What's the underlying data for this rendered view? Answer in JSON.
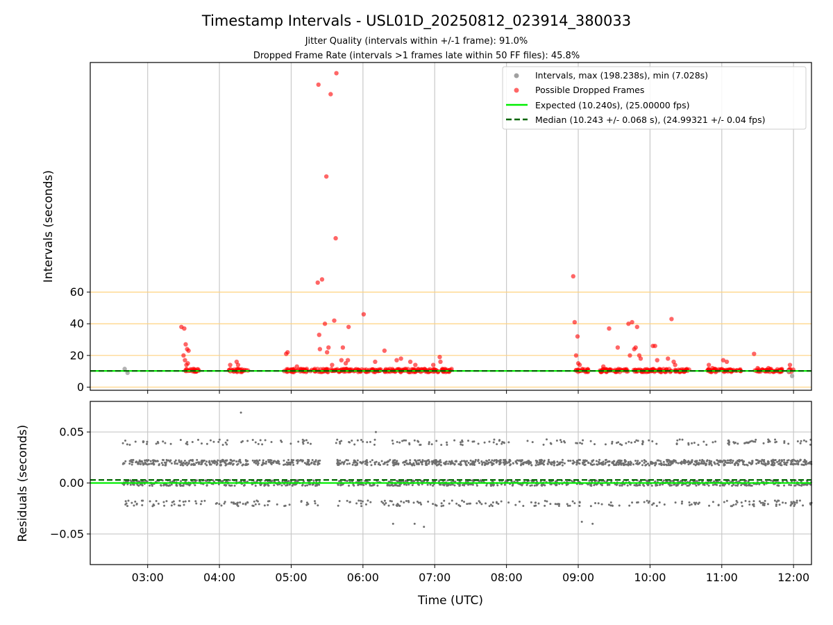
{
  "figure": {
    "title": "Timestamp Intervals - USL01D_20250812_023914_380033",
    "subtitle_1": "Jitter Quality (intervals within +/-1 frame): 91.0%",
    "subtitle_2": "Dropped Frame Rate (intervals >1 frames late within 50 FF files): 45.8%"
  },
  "chart_data": [
    {
      "type": "scatter",
      "panel": "top",
      "ylabel": "Intervals (seconds)",
      "xlabel": "",
      "x_unit": "hours UTC",
      "xlim": [
        2.2,
        12.25
      ],
      "ylim": [
        -2,
        205
      ],
      "y_ticks": [
        0,
        20,
        40,
        60
      ],
      "y_tick_labels": [
        "0",
        "20",
        "40",
        "60"
      ],
      "x_ticks": [
        3,
        4,
        5,
        6,
        7,
        8,
        9,
        10,
        11,
        12
      ],
      "x_tick_labels": [
        "03:00",
        "04:00",
        "05:00",
        "06:00",
        "07:00",
        "08:00",
        "09:00",
        "10:00",
        "11:00",
        "12:00"
      ],
      "grid": "vertical",
      "reference_lines": [
        0,
        20,
        40,
        60
      ],
      "reference_line_color": "#ffd27f",
      "legend_position": "top-right",
      "legend": [
        "Intervals, max (198.238s), min (7.028s)",
        "Possible Dropped Frames",
        "Expected (10.240s), (25.00000 fps)",
        "Median (10.243 +/- 0.068 s), (24.99321 +/- 0.04 fps)"
      ],
      "series": [
        {
          "name": "Intervals, max (198.238s), min (7.028s)",
          "color": "#a0a0a0",
          "x": [
            2.68,
            2.72,
            11.93,
            11.98
          ],
          "y": [
            11.5,
            9.0,
            10.0,
            7.028
          ]
        },
        {
          "name": "Possible Dropped Frames",
          "color": "#ff0000",
          "x": [
            3.47,
            3.51,
            3.53,
            3.55,
            3.5,
            3.52,
            3.56,
            3.54,
            3.57,
            4.15,
            4.24,
            4.26,
            4.93,
            4.95,
            5.08,
            5.37,
            5.38,
            5.39,
            5.4,
            5.43,
            5.47,
            5.49,
            5.5,
            5.52,
            5.55,
            5.57,
            5.6,
            5.62,
            5.63,
            5.7,
            5.72,
            5.76,
            5.79,
            5.8,
            6.01,
            6.17,
            6.3,
            6.47,
            6.53,
            6.66,
            6.73,
            6.98,
            7.07,
            7.08,
            8.93,
            8.95,
            8.97,
            8.99,
            9.0,
            9.02,
            9.35,
            9.43,
            9.55,
            9.7,
            9.72,
            9.75,
            9.78,
            9.8,
            9.82,
            9.85,
            9.87,
            10.04,
            10.07,
            10.1,
            10.25,
            10.3,
            10.33,
            10.35,
            10.82,
            10.87,
            11.02,
            11.07,
            11.45,
            11.5,
            11.65,
            11.95
          ],
          "y": [
            38,
            37,
            27,
            24,
            20,
            17,
            15,
            14,
            23,
            14,
            16,
            14,
            21,
            22,
            13,
            66,
            191,
            33,
            24,
            68,
            40,
            133,
            22,
            25,
            185,
            14,
            42,
            94,
            198.238,
            17,
            25,
            15,
            17,
            38,
            46,
            16,
            23,
            17,
            18,
            16,
            14,
            14,
            19,
            16,
            70,
            41,
            20,
            32,
            15,
            14,
            13,
            37,
            25,
            40,
            20,
            41,
            24,
            25,
            38,
            20,
            18,
            26,
            26,
            17,
            18,
            43,
            16,
            14,
            14,
            12,
            17,
            16,
            21,
            12,
            12,
            14
          ],
          "dense_band": {
            "y_min": 9.5,
            "y_max": 11.5,
            "x_ranges": [
              [
                3.5,
                3.72
              ],
              [
                4.13,
                4.4
              ],
              [
                4.9,
                5.3
              ],
              [
                5.3,
                5.95
              ],
              [
                5.95,
                7.25
              ],
              [
                8.95,
                9.15
              ],
              [
                9.3,
                10.55
              ],
              [
                10.8,
                11.3
              ],
              [
                11.45,
                11.85
              ],
              [
                11.93,
                12.0
              ]
            ]
          }
        },
        {
          "name": "Expected (10.240s), (25.00000 fps)",
          "color": "#00ee00",
          "style": "solid",
          "y": 10.24
        },
        {
          "name": "Median (10.243 +/- 0.068 s), (24.99321 +/- 0.04 fps)",
          "color": "#006400",
          "style": "dashed",
          "y": 10.243
        }
      ]
    },
    {
      "type": "scatter",
      "panel": "bottom",
      "xlabel": "Time (UTC)",
      "ylabel": "Residuals (seconds)",
      "xlim": [
        2.2,
        12.25
      ],
      "ylim": [
        -0.08,
        0.08
      ],
      "y_ticks": [
        -0.05,
        0.0,
        0.05
      ],
      "y_tick_labels": [
        "−0.05",
        "0.00",
        "0.05"
      ],
      "x_ticks": [
        3,
        4,
        5,
        6,
        7,
        8,
        9,
        10,
        11,
        12
      ],
      "x_tick_labels": [
        "03:00",
        "04:00",
        "05:00",
        "06:00",
        "07:00",
        "08:00",
        "09:00",
        "10:00",
        "11:00",
        "12:00"
      ],
      "grid": "both",
      "series": [
        {
          "name": "",
          "color": "#707070",
          "bands": [
            0.02,
            0.0,
            -0.02,
            0.04
          ],
          "band_weights": [
            0.42,
            0.38,
            0.12,
            0.08
          ],
          "x_ranges": [
            [
              2.65,
              4.4
            ],
            [
              4.45,
              5.4
            ],
            [
              5.62,
              12.25
            ]
          ],
          "outliers_x": [
            4.3,
            6.18,
            6.42,
            6.72,
            6.85,
            9.05,
            9.2
          ],
          "outliers_y": [
            0.069,
            0.05,
            -0.04,
            -0.04,
            -0.043,
            -0.038,
            -0.04
          ]
        },
        {
          "name": "",
          "color": "#00ee00",
          "style": "solid",
          "y": 0.0
        },
        {
          "name": "",
          "color": "#006400",
          "style": "dashed",
          "y": 0.003
        }
      ]
    }
  ]
}
